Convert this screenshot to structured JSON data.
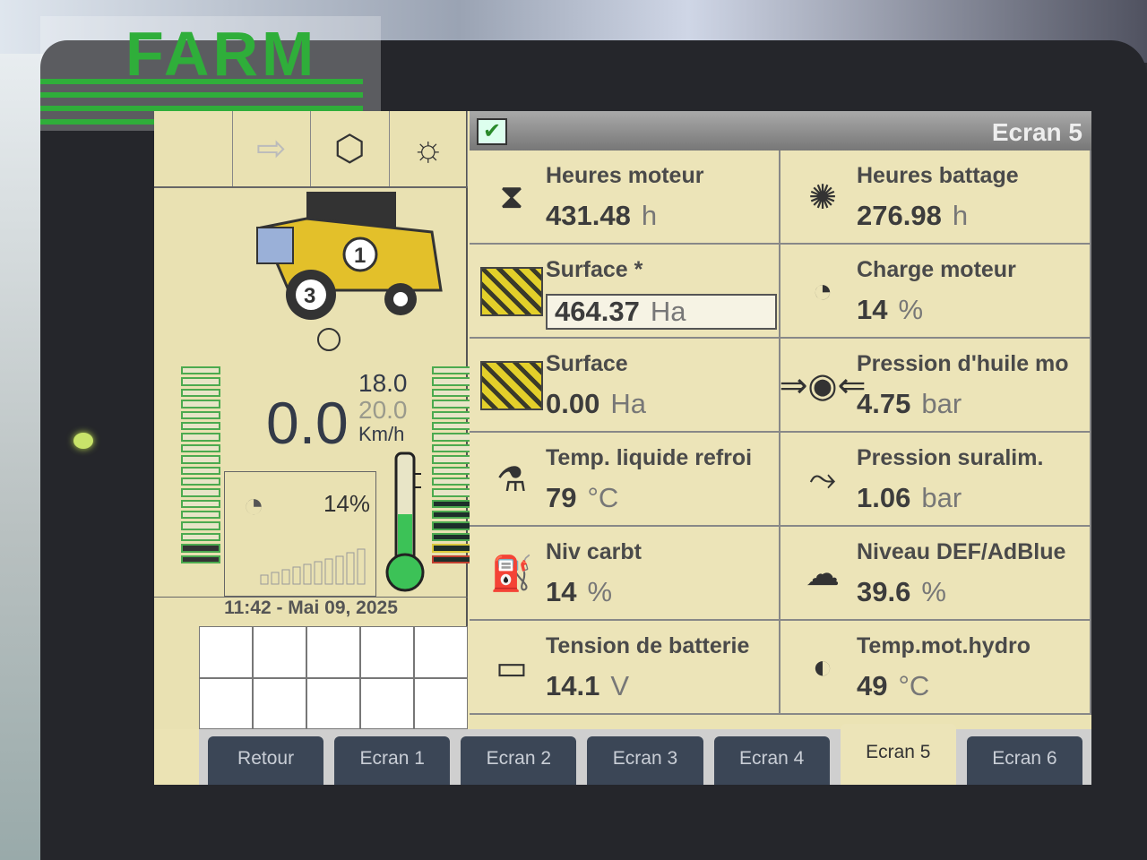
{
  "logo": "FARM",
  "header": {
    "title": "Ecran 5",
    "checkbox_icon": "checkmark-icon"
  },
  "left": {
    "speed": "0.0",
    "speed_set1": "18.0",
    "speed_set2": "20.0",
    "speed_unit": "Km/h",
    "engine_load": "14%",
    "datetime": "11:42 - Mai 09, 2025"
  },
  "cells": [
    {
      "label": "Heures moteur",
      "value": "431.48",
      "unit": "h",
      "icon": "hourglass-engine-icon"
    },
    {
      "label": "Heures battage",
      "value": "276.98",
      "unit": "h",
      "icon": "threshing-drum-icon"
    },
    {
      "label": "Surface *",
      "value": "464.37",
      "unit": "Ha",
      "icon": "field-hatch-icon",
      "boxed": true
    },
    {
      "label": "Charge moteur",
      "value": "14",
      "unit": "%",
      "icon": "engine-load-icon"
    },
    {
      "label": "Surface",
      "value": "0.00",
      "unit": "Ha",
      "icon": "field-hatch-icon"
    },
    {
      "label": "Pression d'huile mo",
      "value": "4.75",
      "unit": "bar",
      "icon": "oil-pressure-icon"
    },
    {
      "label": "Temp. liquide refroi",
      "value": "79",
      "unit": "°C",
      "icon": "coolant-temp-icon"
    },
    {
      "label": "Pression suralim.",
      "value": "1.06",
      "unit": "bar",
      "icon": "boost-pressure-icon"
    },
    {
      "label": "Niv carbt",
      "value": "14",
      "unit": "%",
      "icon": "fuel-pump-icon"
    },
    {
      "label": "Niveau DEF/AdBlue",
      "value": "39.6",
      "unit": "%",
      "icon": "def-adblue-icon"
    },
    {
      "label": "Tension de batterie",
      "value": "14.1",
      "unit": "V",
      "icon": "battery-icon"
    },
    {
      "label": "Temp.mot.hydro",
      "value": "49",
      "unit": "°C",
      "icon": "hydro-motor-temp-icon"
    }
  ],
  "tabs": [
    "Retour",
    "Ecran 1",
    "Ecran 2",
    "Ecran 3",
    "Ecran 4",
    "Ecran 5",
    "Ecran 6"
  ],
  "active_tab": "Ecran 5",
  "colors": {
    "screen_bg": "#ece4b8",
    "tab_bg": "#3b4656",
    "gauge_green": "#4caa4f"
  }
}
